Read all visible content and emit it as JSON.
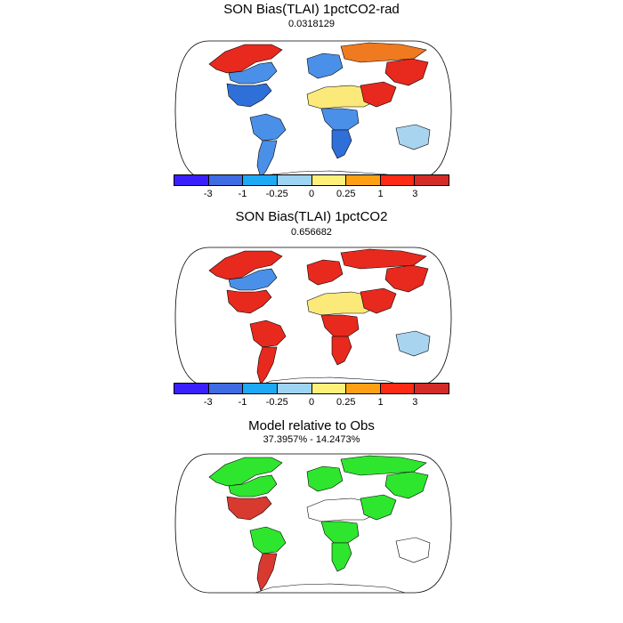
{
  "panels": [
    {
      "title": "SON Bias(TLAI) 1pctCO2-rad",
      "subtitle": "0.0318129",
      "kind": "bias",
      "regions": [
        {
          "name": "alaska-canada-north",
          "fill": "high"
        },
        {
          "name": "canada-central",
          "fill": "mid-neg"
        },
        {
          "name": "usa-east",
          "fill": "strong-neg"
        },
        {
          "name": "amazon",
          "fill": "mid-neg"
        },
        {
          "name": "south-america-south",
          "fill": "mid-neg"
        },
        {
          "name": "sahara",
          "fill": "near-zero-pos"
        },
        {
          "name": "central-africa",
          "fill": "mid-neg"
        },
        {
          "name": "southern-africa",
          "fill": "strong-neg"
        },
        {
          "name": "europe",
          "fill": "mid-neg"
        },
        {
          "name": "siberia",
          "fill": "mixed"
        },
        {
          "name": "east-asia",
          "fill": "high"
        },
        {
          "name": "south-asia",
          "fill": "high"
        },
        {
          "name": "australia",
          "fill": "light-neg"
        }
      ]
    },
    {
      "title": "SON Bias(TLAI) 1pctCO2",
      "subtitle": "0.656682",
      "kind": "bias",
      "regions": [
        {
          "name": "alaska-canada-north",
          "fill": "high"
        },
        {
          "name": "canada-central",
          "fill": "mid-neg"
        },
        {
          "name": "usa-east",
          "fill": "high"
        },
        {
          "name": "amazon",
          "fill": "high"
        },
        {
          "name": "south-america-south",
          "fill": "high"
        },
        {
          "name": "sahara",
          "fill": "near-zero-pos"
        },
        {
          "name": "central-africa",
          "fill": "high"
        },
        {
          "name": "southern-africa",
          "fill": "high"
        },
        {
          "name": "europe",
          "fill": "high"
        },
        {
          "name": "siberia",
          "fill": "high"
        },
        {
          "name": "east-asia",
          "fill": "high"
        },
        {
          "name": "south-asia",
          "fill": "high"
        },
        {
          "name": "australia",
          "fill": "light-neg"
        }
      ]
    },
    {
      "title": "Model relative to Obs",
      "subtitle": "37.3957% - 14.2473%",
      "kind": "relative",
      "regions": [
        {
          "name": "alaska-canada-north",
          "fill": "green"
        },
        {
          "name": "canada-central",
          "fill": "green"
        },
        {
          "name": "usa-east",
          "fill": "red"
        },
        {
          "name": "amazon",
          "fill": "green"
        },
        {
          "name": "south-america-south",
          "fill": "red"
        },
        {
          "name": "sahara",
          "fill": "white"
        },
        {
          "name": "central-africa",
          "fill": "green"
        },
        {
          "name": "southern-africa",
          "fill": "green"
        },
        {
          "name": "europe",
          "fill": "green"
        },
        {
          "name": "siberia",
          "fill": "green"
        },
        {
          "name": "east-asia",
          "fill": "green"
        },
        {
          "name": "south-asia",
          "fill": "green"
        },
        {
          "name": "australia",
          "fill": "white"
        }
      ]
    }
  ],
  "colorbar": {
    "colors": [
      "#3b20ff",
      "#3f6be3",
      "#1ea9f5",
      "#9ed4f2",
      "#fff07a",
      "#ffa014",
      "#ff2a14",
      "#d42b27"
    ],
    "tick_labels": [
      "-3",
      "-1",
      "-0.25",
      "0",
      "0.25",
      "1",
      "3"
    ]
  },
  "palette": {
    "high": "#e8291e",
    "mid-neg": "#4a90e8",
    "strong-neg": "#2f6fd8",
    "light-neg": "#a8d4f0",
    "near-zero-pos": "#fbe97a",
    "mixed": "#f07a20",
    "green": "#2ee62e",
    "red": "#d83a30",
    "white": "#ffffff"
  }
}
